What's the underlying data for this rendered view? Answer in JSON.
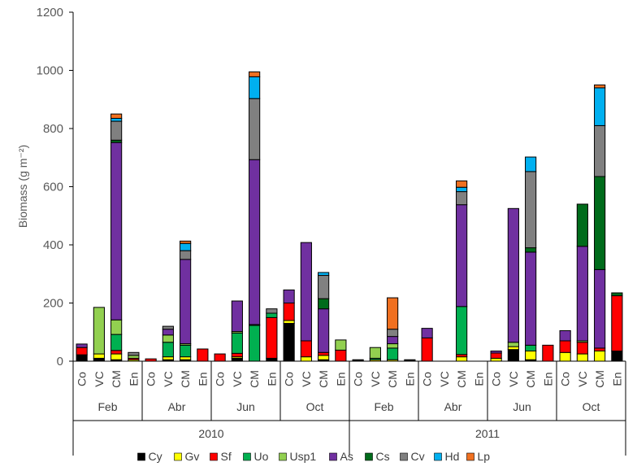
{
  "chart_data": {
    "type": "bar",
    "stacked": true,
    "ylabel": "Biomass (g m⁻²)",
    "ylim": [
      0,
      1200
    ],
    "yticks": [
      0,
      200,
      400,
      600,
      800,
      1000,
      1200
    ],
    "years": [
      {
        "label": "2010",
        "months": [
          {
            "label": "Feb",
            "treatments": [
              {
                "label": "Co",
                "values": {
                  "Cy": 22,
                  "Gv": 0,
                  "Sf": 25,
                  "Uo": 0,
                  "Usp1": 0,
                  "As": 12,
                  "Cs": 0,
                  "Cv": 0,
                  "Hd": 0,
                  "Lp": 0
                }
              },
              {
                "label": "VC",
                "values": {
                  "Cy": 10,
                  "Gv": 15,
                  "Sf": 0,
                  "Uo": 0,
                  "Usp1": 160,
                  "As": 0,
                  "Cs": 0,
                  "Cv": 0,
                  "Hd": 0,
                  "Lp": 0
                }
              },
              {
                "label": "CM",
                "values": {
                  "Cy": 5,
                  "Gv": 20,
                  "Sf": 12,
                  "Uo": 55,
                  "Usp1": 50,
                  "As": 610,
                  "Cs": 8,
                  "Cv": 65,
                  "Hd": 10,
                  "Lp": 15
                }
              },
              {
                "label": "En",
                "values": {
                  "Cy": 0,
                  "Gv": 5,
                  "Sf": 5,
                  "Uo": 0,
                  "Usp1": 10,
                  "As": 0,
                  "Cs": 0,
                  "Cv": 10,
                  "Hd": 0,
                  "Lp": 0
                }
              }
            ]
          },
          {
            "label": "Abr",
            "treatments": [
              {
                "label": "Co",
                "values": {
                  "Cy": 0,
                  "Gv": 0,
                  "Sf": 8,
                  "Uo": 0,
                  "Usp1": 0,
                  "As": 0,
                  "Cs": 0,
                  "Cv": 0,
                  "Hd": 0,
                  "Lp": 0
                }
              },
              {
                "label": "VC",
                "values": {
                  "Cy": 5,
                  "Gv": 10,
                  "Sf": 0,
                  "Uo": 50,
                  "Usp1": 25,
                  "As": 20,
                  "Cs": 0,
                  "Cv": 10,
                  "Hd": 0,
                  "Lp": 0
                }
              },
              {
                "label": "CM",
                "values": {
                  "Cy": 5,
                  "Gv": 10,
                  "Sf": 0,
                  "Uo": 40,
                  "Usp1": 5,
                  "As": 290,
                  "Cs": 0,
                  "Cv": 30,
                  "Hd": 25,
                  "Lp": 8
                }
              },
              {
                "label": "En",
                "values": {
                  "Cy": 0,
                  "Gv": 0,
                  "Sf": 42,
                  "Uo": 0,
                  "Usp1": 0,
                  "As": 0,
                  "Cs": 0,
                  "Cv": 0,
                  "Hd": 0,
                  "Lp": 0
                }
              }
            ]
          },
          {
            "label": "Jun",
            "treatments": [
              {
                "label": "Co",
                "values": {
                  "Cy": 0,
                  "Gv": 0,
                  "Sf": 25,
                  "Uo": 0,
                  "Usp1": 0,
                  "As": 0,
                  "Cs": 0,
                  "Cv": 0,
                  "Hd": 0,
                  "Lp": 0
                }
              },
              {
                "label": "VC",
                "values": {
                  "Cy": 10,
                  "Gv": 5,
                  "Sf": 12,
                  "Uo": 70,
                  "Usp1": 5,
                  "As": 105,
                  "Cs": 0,
                  "Cv": 0,
                  "Hd": 0,
                  "Lp": 0
                }
              },
              {
                "label": "CM",
                "values": {
                  "Cy": 0,
                  "Gv": 0,
                  "Sf": 0,
                  "Uo": 123,
                  "Usp1": 3,
                  "As": 567,
                  "Cs": 0,
                  "Cv": 210,
                  "Hd": 75,
                  "Lp": 17
                }
              },
              {
                "label": "En",
                "values": {
                  "Cy": 10,
                  "Gv": 0,
                  "Sf": 140,
                  "Uo": 15,
                  "Usp1": 0,
                  "As": 0,
                  "Cs": 0,
                  "Cv": 15,
                  "Hd": 0,
                  "Lp": 0
                }
              }
            ]
          },
          {
            "label": "Oct",
            "treatments": [
              {
                "label": "Co",
                "values": {
                  "Cy": 130,
                  "Gv": 10,
                  "Sf": 60,
                  "Uo": 0,
                  "Usp1": 0,
                  "As": 45,
                  "Cs": 0,
                  "Cv": 0,
                  "Hd": 0,
                  "Lp": 0
                }
              },
              {
                "label": "VC",
                "values": {
                  "Cy": 0,
                  "Gv": 15,
                  "Sf": 55,
                  "Uo": 0,
                  "Usp1": 0,
                  "As": 338,
                  "Cs": 0,
                  "Cv": 0,
                  "Hd": 0,
                  "Lp": 0
                }
              },
              {
                "label": "CM",
                "values": {
                  "Cy": 5,
                  "Gv": 15,
                  "Sf": 10,
                  "Uo": 0,
                  "Usp1": 0,
                  "As": 150,
                  "Cs": 35,
                  "Cv": 80,
                  "Hd": 10,
                  "Lp": 0
                }
              },
              {
                "label": "En",
                "values": {
                  "Cy": 0,
                  "Gv": 0,
                  "Sf": 38,
                  "Uo": 0,
                  "Usp1": 35,
                  "As": 0,
                  "Cs": 0,
                  "Cv": 0,
                  "Hd": 0,
                  "Lp": 0
                }
              }
            ]
          }
        ]
      },
      {
        "label": "2011",
        "months": [
          {
            "label": "Feb",
            "treatments": [
              {
                "label": "Co",
                "values": {
                  "Cy": 5,
                  "Gv": 0,
                  "Sf": 0,
                  "Uo": 0,
                  "Usp1": 0,
                  "As": 0,
                  "Cs": 0,
                  "Cv": 0,
                  "Hd": 0,
                  "Lp": 0
                }
              },
              {
                "label": "VC",
                "values": {
                  "Cy": 0,
                  "Gv": 5,
                  "Sf": 0,
                  "Uo": 5,
                  "Usp1": 37,
                  "As": 0,
                  "Cs": 0,
                  "Cv": 0,
                  "Hd": 0,
                  "Lp": 0
                }
              },
              {
                "label": "CM",
                "values": {
                  "Cy": 0,
                  "Gv": 5,
                  "Sf": 0,
                  "Uo": 40,
                  "Usp1": 15,
                  "As": 25,
                  "Cs": 0,
                  "Cv": 25,
                  "Hd": 0,
                  "Lp": 108
                }
              },
              {
                "label": "En",
                "values": {
                  "Cy": 5,
                  "Gv": 0,
                  "Sf": 0,
                  "Uo": 0,
                  "Usp1": 0,
                  "As": 0,
                  "Cs": 0,
                  "Cv": 0,
                  "Hd": 0,
                  "Lp": 0
                }
              }
            ]
          },
          {
            "label": "Abr",
            "treatments": [
              {
                "label": "Co",
                "values": {
                  "Cy": 0,
                  "Gv": 0,
                  "Sf": 80,
                  "Uo": 0,
                  "Usp1": 0,
                  "As": 33,
                  "Cs": 0,
                  "Cv": 0,
                  "Hd": 0,
                  "Lp": 0
                }
              },
              {
                "label": "VC",
                "values": {
                  "Cy": 0,
                  "Gv": 0,
                  "Sf": 0,
                  "Uo": 0,
                  "Usp1": 0,
                  "As": 0,
                  "Cs": 0,
                  "Cv": 0,
                  "Hd": 0,
                  "Lp": 0
                }
              },
              {
                "label": "CM",
                "values": {
                  "Cy": 0,
                  "Gv": 15,
                  "Sf": 8,
                  "Uo": 165,
                  "Usp1": 0,
                  "As": 350,
                  "Cs": 0,
                  "Cv": 45,
                  "Hd": 15,
                  "Lp": 22
                }
              },
              {
                "label": "En",
                "values": {
                  "Cy": 0,
                  "Gv": 0,
                  "Sf": 0,
                  "Uo": 0,
                  "Usp1": 0,
                  "As": 0,
                  "Cs": 0,
                  "Cv": 0,
                  "Hd": 0,
                  "Lp": 0
                }
              }
            ]
          },
          {
            "label": "Jun",
            "treatments": [
              {
                "label": "Co",
                "values": {
                  "Cy": 0,
                  "Gv": 10,
                  "Sf": 18,
                  "Uo": 0,
                  "Usp1": 0,
                  "As": 7,
                  "Cs": 0,
                  "Cv": 0,
                  "Hd": 0,
                  "Lp": 0
                }
              },
              {
                "label": "VC",
                "values": {
                  "Cy": 40,
                  "Gv": 10,
                  "Sf": 0,
                  "Uo": 0,
                  "Usp1": 15,
                  "As": 460,
                  "Cs": 0,
                  "Cv": 0,
                  "Hd": 0,
                  "Lp": 0
                }
              },
              {
                "label": "CM",
                "values": {
                  "Cy": 5,
                  "Gv": 30,
                  "Sf": 0,
                  "Uo": 20,
                  "Usp1": 0,
                  "As": 320,
                  "Cs": 15,
                  "Cv": 262,
                  "Hd": 50,
                  "Lp": 0
                }
              },
              {
                "label": "En",
                "values": {
                  "Cy": 0,
                  "Gv": 0,
                  "Sf": 55,
                  "Uo": 0,
                  "Usp1": 0,
                  "As": 0,
                  "Cs": 0,
                  "Cv": 0,
                  "Hd": 0,
                  "Lp": 0
                }
              }
            ]
          },
          {
            "label": "Oct",
            "treatments": [
              {
                "label": "Co",
                "values": {
                  "Cy": 0,
                  "Gv": 30,
                  "Sf": 40,
                  "Uo": 0,
                  "Usp1": 0,
                  "As": 35,
                  "Cs": 0,
                  "Cv": 0,
                  "Hd": 0,
                  "Lp": 0
                }
              },
              {
                "label": "VC",
                "values": {
                  "Cy": 0,
                  "Gv": 25,
                  "Sf": 40,
                  "Uo": 0,
                  "Usp1": 5,
                  "As": 325,
                  "Cs": 145,
                  "Cv": 0,
                  "Hd": 0,
                  "Lp": 0
                }
              },
              {
                "label": "CM",
                "values": {
                  "Cy": 0,
                  "Gv": 35,
                  "Sf": 10,
                  "Uo": 0,
                  "Usp1": 0,
                  "As": 270,
                  "Cs": 320,
                  "Cv": 175,
                  "Hd": 130,
                  "Lp": 10
                }
              },
              {
                "label": "En",
                "values": {
                  "Cy": 35,
                  "Gv": 0,
                  "Sf": 190,
                  "Uo": 0,
                  "Usp1": 0,
                  "As": 0,
                  "Cs": 10,
                  "Cv": 0,
                  "Hd": 0,
                  "Lp": 0
                }
              }
            ]
          }
        ]
      }
    ],
    "legend": [
      {
        "name": "Cy",
        "color": "#000000"
      },
      {
        "name": "Gv",
        "color": "#ffff00"
      },
      {
        "name": "Sf",
        "color": "#ff0000"
      },
      {
        "name": "Uo",
        "color": "#00b050"
      },
      {
        "name": "Usp1",
        "color": "#92d050"
      },
      {
        "name": "As",
        "color": "#7030a0"
      },
      {
        "name": "Cs",
        "color": "#006b1b"
      },
      {
        "name": "Cv",
        "color": "#808080"
      },
      {
        "name": "Hd",
        "color": "#00b0f0"
      },
      {
        "name": "Lp",
        "color": "#f07020"
      }
    ],
    "legend_position": "bottom"
  }
}
